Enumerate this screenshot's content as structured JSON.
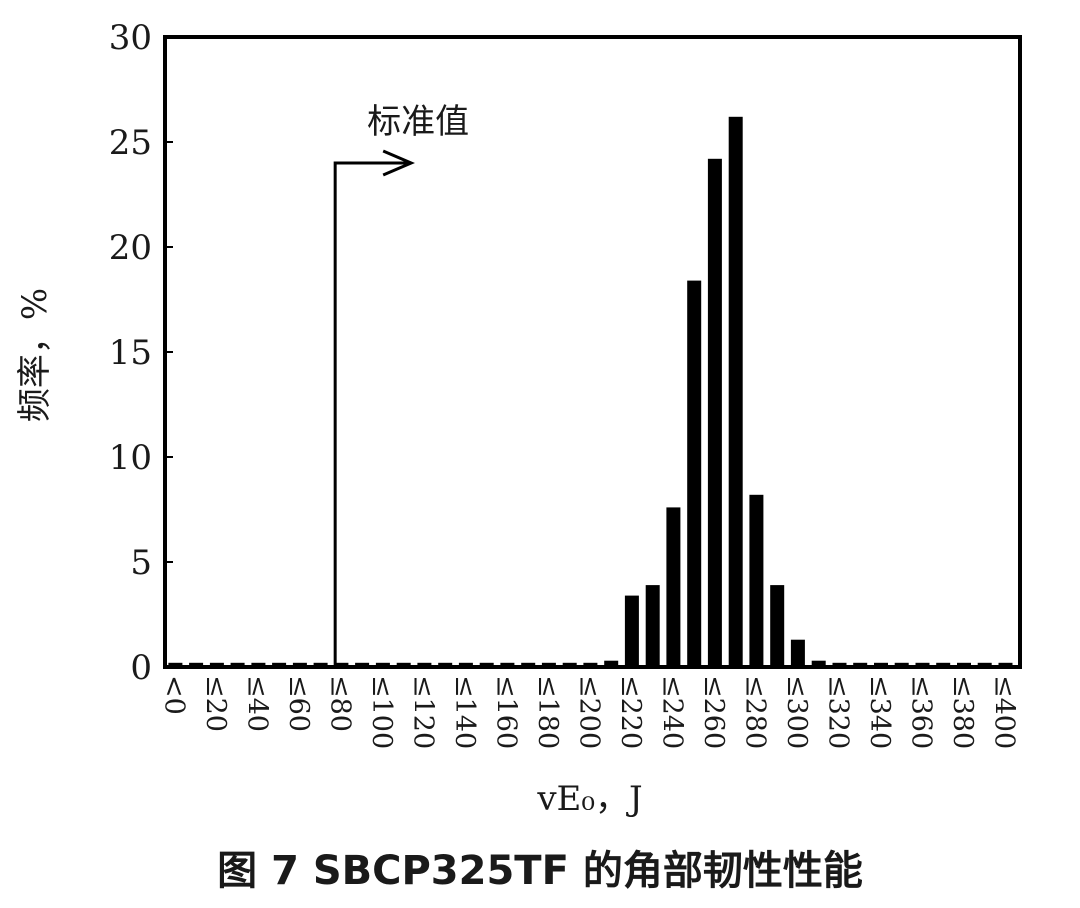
{
  "chart_data": {
    "type": "bar",
    "xlabel": "vE₀，J",
    "ylabel": "频率，%",
    "ylim": [
      0,
      30
    ],
    "yticks": [
      "0",
      "5",
      "10",
      "15",
      "20",
      "25",
      "30"
    ],
    "categories": [
      "<0",
      "≤20",
      "≤40",
      "≤60",
      "≤80",
      "≤100",
      "≤120",
      "≤140",
      "≤160",
      "≤180",
      "≤200",
      "≤220",
      "≤240",
      "≤260",
      "≤280",
      "≤300",
      "≤320",
      "≤340",
      "≤360",
      "≤380",
      "≤400"
    ],
    "bars": [
      {
        "x": 0,
        "y": 0.2
      },
      {
        "x": 10,
        "y": 0.2
      },
      {
        "x": 20,
        "y": 0.2
      },
      {
        "x": 30,
        "y": 0.2
      },
      {
        "x": 40,
        "y": 0.2
      },
      {
        "x": 50,
        "y": 0.2
      },
      {
        "x": 60,
        "y": 0.2
      },
      {
        "x": 70,
        "y": 0.2
      },
      {
        "x": 80,
        "y": 0.2
      },
      {
        "x": 90,
        "y": 0.2
      },
      {
        "x": 100,
        "y": 0.2
      },
      {
        "x": 110,
        "y": 0.2
      },
      {
        "x": 120,
        "y": 0.2
      },
      {
        "x": 130,
        "y": 0.2
      },
      {
        "x": 140,
        "y": 0.2
      },
      {
        "x": 150,
        "y": 0.2
      },
      {
        "x": 160,
        "y": 0.2
      },
      {
        "x": 170,
        "y": 0.2
      },
      {
        "x": 180,
        "y": 0.2
      },
      {
        "x": 190,
        "y": 0.2
      },
      {
        "x": 200,
        "y": 0.2
      },
      {
        "x": 210,
        "y": 0.3
      },
      {
        "x": 220,
        "y": 3.4
      },
      {
        "x": 230,
        "y": 3.9
      },
      {
        "x": 240,
        "y": 7.6
      },
      {
        "x": 250,
        "y": 18.4
      },
      {
        "x": 260,
        "y": 24.2
      },
      {
        "x": 270,
        "y": 26.2
      },
      {
        "x": 280,
        "y": 8.2
      },
      {
        "x": 290,
        "y": 3.9
      },
      {
        "x": 300,
        "y": 1.3
      },
      {
        "x": 310,
        "y": 0.3
      },
      {
        "x": 320,
        "y": 0.2
      },
      {
        "x": 330,
        "y": 0.2
      },
      {
        "x": 340,
        "y": 0.2
      },
      {
        "x": 350,
        "y": 0.2
      },
      {
        "x": 360,
        "y": 0.2
      },
      {
        "x": 370,
        "y": 0.2
      },
      {
        "x": 380,
        "y": 0.2
      },
      {
        "x": 390,
        "y": 0.2
      },
      {
        "x": 400,
        "y": 0.2
      }
    ],
    "annotations": [
      {
        "text": "标准值",
        "x": 77,
        "y": 24
      }
    ],
    "grid": false,
    "legend": "none"
  },
  "caption": "图 7 SBCP325TF 的角部韧性性能",
  "colors": {
    "bar": "#000000",
    "axis": "#000000",
    "text": "#1a1a1a"
  }
}
